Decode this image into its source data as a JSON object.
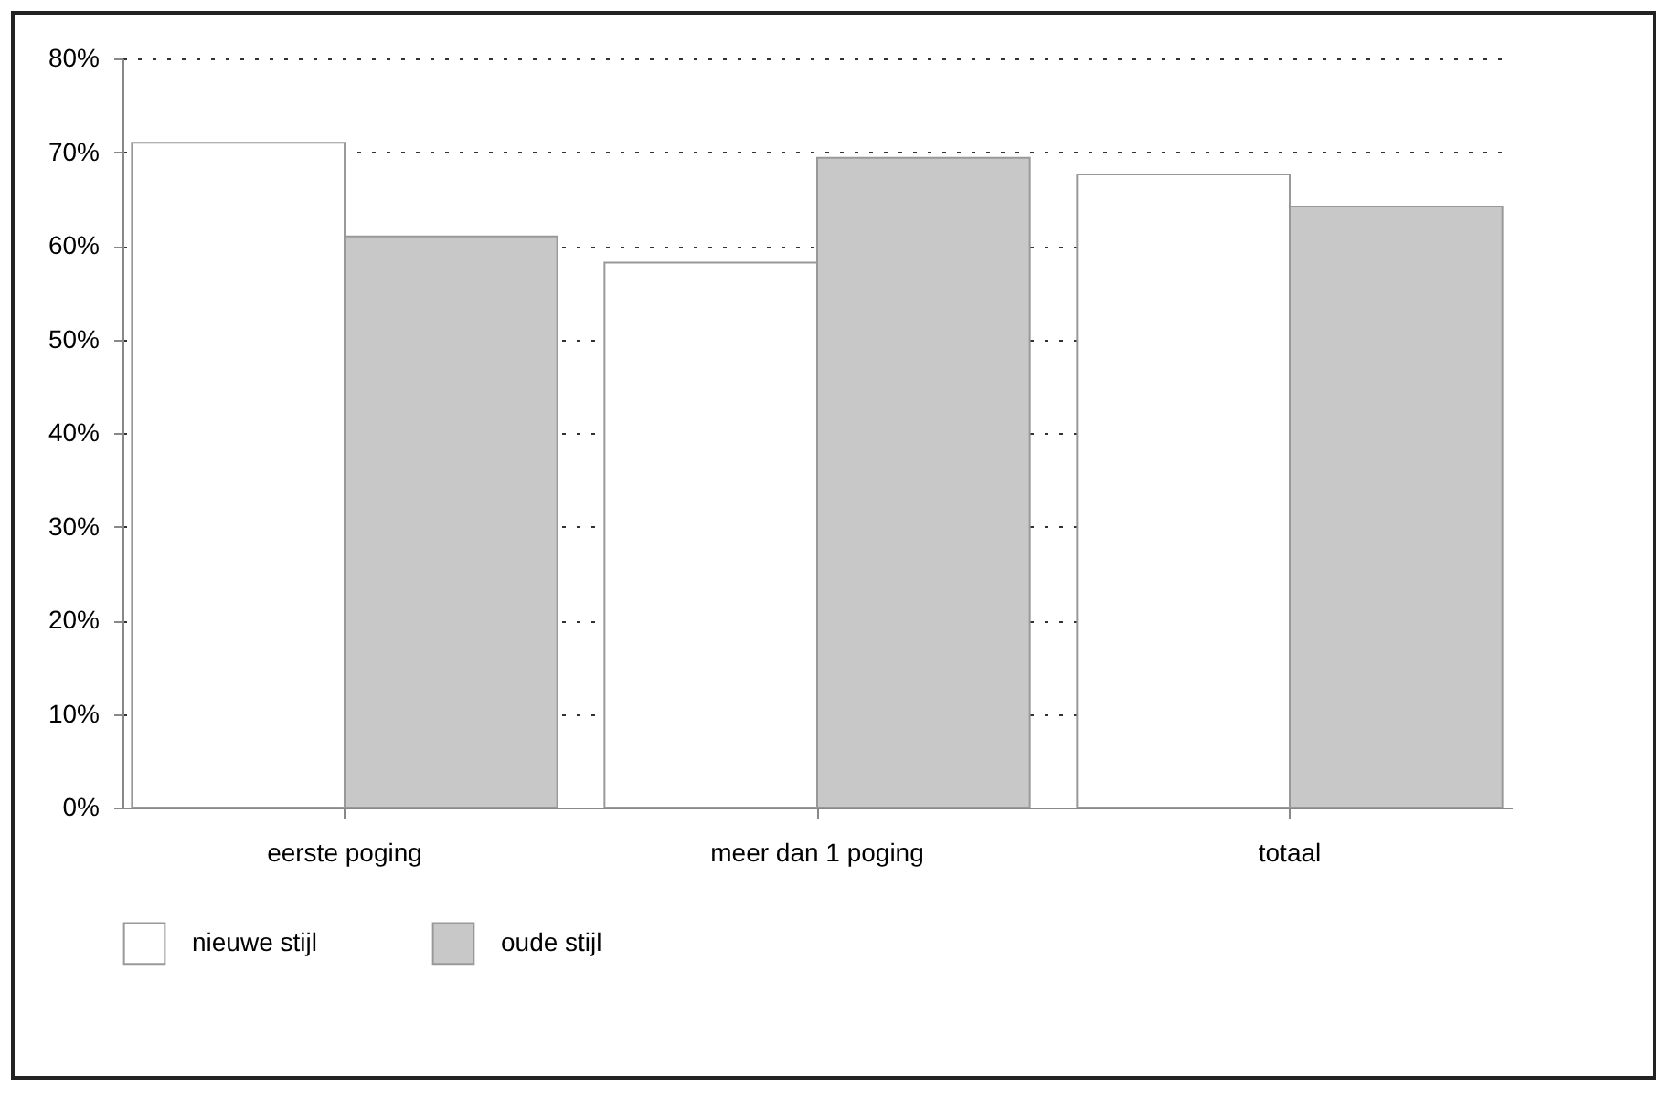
{
  "chart_data": {
    "type": "bar",
    "categories": [
      "eerste poging",
      "meer dan 1  poging",
      "totaal"
    ],
    "series": [
      {
        "name": "nieuwe stijl",
        "color": "#ffffff",
        "values": [
          71,
          58.2,
          67.6
        ]
      },
      {
        "name": "oude stijl",
        "color": "#c8c8c8",
        "values": [
          61,
          69.4,
          64.2
        ]
      }
    ],
    "ylim": [
      0,
      80
    ],
    "yticks": [
      {
        "value": 0,
        "label": "0%"
      },
      {
        "value": 10,
        "label": "10%"
      },
      {
        "value": 20,
        "label": "20%"
      },
      {
        "value": 30,
        "label": "30%"
      },
      {
        "value": 40,
        "label": "40%"
      },
      {
        "value": 50,
        "label": "50%"
      },
      {
        "value": 60,
        "label": "60%"
      },
      {
        "value": 70,
        "label": "70%"
      },
      {
        "value": 80,
        "label": "80%"
      }
    ],
    "grid": "y",
    "legend": "bottom"
  }
}
